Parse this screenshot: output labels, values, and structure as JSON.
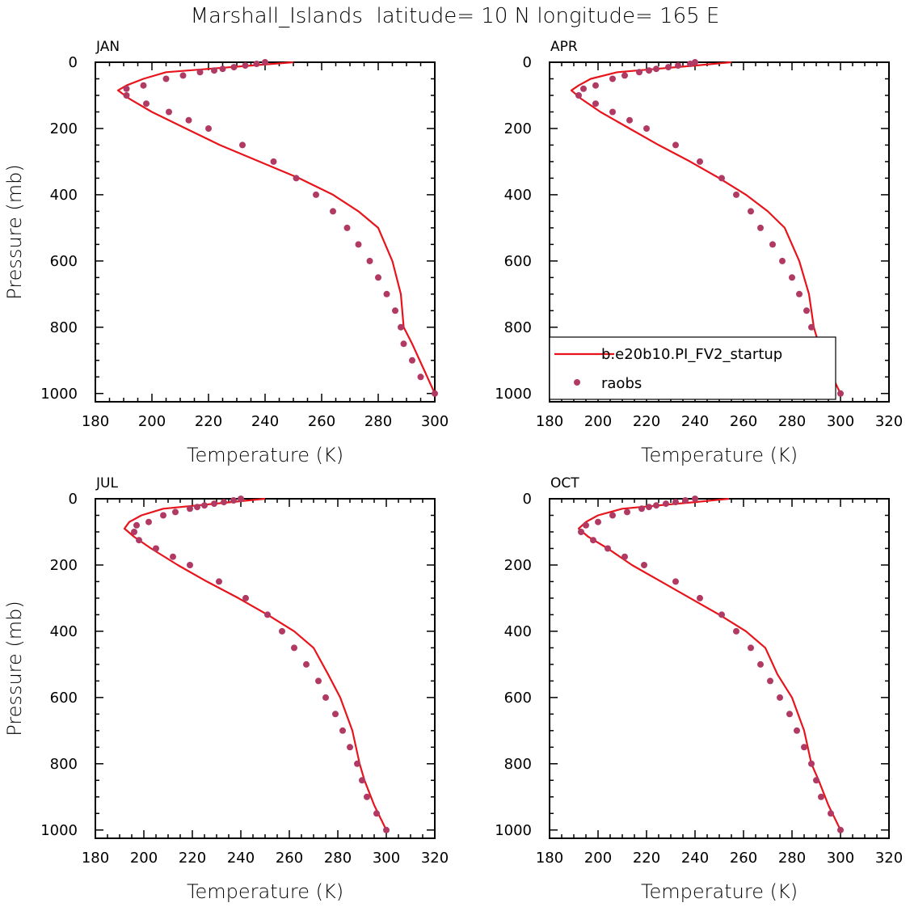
{
  "title": "Marshall_Islands  latitude= 10 N longitude= 165 E",
  "colors": {
    "model": "#e8141c",
    "obs": "#b13a64",
    "axis": "#000000",
    "background": "#ffffff"
  },
  "legend": {
    "model": "b.e20b10.PI_FV2_startup",
    "obs": "raobs",
    "panel": "APR"
  },
  "chart_data": [
    {
      "type": "line",
      "panel": "JAN",
      "xlabel": "Temperature (K)",
      "ylabel": "Pressure (mb)",
      "xlim": [
        180,
        300
      ],
      "ylim": [
        1025,
        0
      ],
      "y_inverted": true,
      "xticks": [
        180,
        200,
        220,
        240,
        260,
        280,
        300
      ],
      "yticks": [
        0,
        200,
        400,
        600,
        800,
        1000
      ],
      "series": [
        {
          "name": "b.e20b10.PI_FV2_startup",
          "kind": "line",
          "x": [
            250,
            235,
            220,
            205,
            197,
            191,
            188,
            192,
            200,
            212,
            224,
            238,
            252,
            264,
            273,
            280,
            285,
            288,
            289,
            292,
            296,
            300
          ],
          "y": [
            0,
            10,
            20,
            30,
            50,
            70,
            85,
            110,
            150,
            200,
            250,
            300,
            350,
            400,
            450,
            500,
            600,
            700,
            800,
            850,
            925,
            1000
          ]
        },
        {
          "name": "raobs",
          "kind": "points",
          "x": [
            240,
            237,
            233,
            229,
            225,
            222,
            217,
            211,
            205,
            197,
            191,
            191,
            198,
            206,
            213,
            220,
            232,
            243,
            251,
            258,
            264,
            269,
            273,
            277,
            280,
            283,
            286,
            288,
            289,
            292,
            295,
            300
          ],
          "y": [
            0,
            5,
            10,
            15,
            20,
            25,
            30,
            40,
            50,
            70,
            80,
            100,
            125,
            150,
            175,
            200,
            250,
            300,
            350,
            400,
            450,
            500,
            550,
            600,
            650,
            700,
            750,
            800,
            850,
            900,
            950,
            1000
          ]
        }
      ]
    },
    {
      "type": "line",
      "panel": "APR",
      "xlabel": "Temperature (K)",
      "ylabel": "",
      "xlim": [
        180,
        320
      ],
      "ylim": [
        1025,
        0
      ],
      "y_inverted": true,
      "xticks": [
        180,
        200,
        220,
        240,
        260,
        280,
        300,
        320
      ],
      "yticks": [
        0,
        200,
        400,
        600,
        800,
        1000
      ],
      "series": [
        {
          "name": "b.e20b10.PI_FV2_startup",
          "kind": "line",
          "x": [
            255,
            240,
            224,
            208,
            197,
            192,
            189,
            193,
            201,
            213,
            225,
            238,
            250,
            261,
            270,
            277,
            283,
            287,
            289,
            291,
            295,
            300
          ],
          "y": [
            0,
            10,
            20,
            30,
            50,
            70,
            85,
            110,
            150,
            200,
            250,
            300,
            350,
            400,
            450,
            500,
            600,
            700,
            800,
            850,
            925,
            1000
          ]
        },
        {
          "name": "raobs",
          "kind": "points",
          "x": [
            240,
            238,
            233,
            229,
            224,
            221,
            217,
            211,
            206,
            199,
            194,
            192,
            199,
            206,
            213,
            220,
            232,
            242,
            251,
            257,
            263,
            267,
            272,
            276,
            280,
            283,
            286,
            288,
            290,
            292,
            296,
            300
          ],
          "y": [
            0,
            5,
            10,
            15,
            20,
            25,
            30,
            40,
            50,
            70,
            80,
            100,
            125,
            150,
            175,
            200,
            250,
            300,
            350,
            400,
            450,
            500,
            550,
            600,
            650,
            700,
            750,
            800,
            850,
            900,
            950,
            1000
          ]
        }
      ]
    },
    {
      "type": "line",
      "panel": "JUL",
      "xlabel": "Temperature (K)",
      "ylabel": "Pressure (mb)",
      "xlim": [
        180,
        320
      ],
      "ylim": [
        1025,
        0
      ],
      "y_inverted": true,
      "xticks": [
        180,
        200,
        220,
        240,
        260,
        280,
        300,
        320
      ],
      "yticks": [
        0,
        200,
        400,
        600,
        800,
        1000
      ],
      "series": [
        {
          "name": "b.e20b10.PI_FV2_startup",
          "kind": "line",
          "x": [
            250,
            236,
            222,
            208,
            199,
            194,
            192,
            196,
            203,
            214,
            226,
            239,
            251,
            262,
            270,
            276,
            281,
            286,
            289,
            291,
            295,
            300
          ],
          "y": [
            0,
            10,
            20,
            30,
            50,
            70,
            90,
            115,
            150,
            200,
            250,
            300,
            350,
            400,
            450,
            530,
            600,
            700,
            800,
            850,
            925,
            1000
          ]
        },
        {
          "name": "raobs",
          "kind": "points",
          "x": [
            240,
            237,
            233,
            229,
            225,
            222,
            219,
            213,
            208,
            202,
            197,
            196,
            198,
            205,
            212,
            219,
            231,
            242,
            251,
            257,
            262,
            267,
            272,
            275,
            279,
            282,
            285,
            288,
            290,
            292,
            296,
            300
          ],
          "y": [
            0,
            5,
            10,
            15,
            20,
            25,
            30,
            40,
            50,
            70,
            80,
            100,
            125,
            150,
            175,
            200,
            250,
            300,
            350,
            400,
            450,
            500,
            550,
            600,
            650,
            700,
            750,
            800,
            850,
            900,
            950,
            1000
          ]
        }
      ]
    },
    {
      "type": "line",
      "panel": "OCT",
      "xlabel": "Temperature (K)",
      "ylabel": "",
      "xlim": [
        180,
        320
      ],
      "ylim": [
        1025,
        0
      ],
      "y_inverted": true,
      "xticks": [
        180,
        200,
        220,
        240,
        260,
        280,
        300,
        320
      ],
      "yticks": [
        0,
        200,
        400,
        600,
        800,
        1000
      ],
      "series": [
        {
          "name": "b.e20b10.PI_FV2_startup",
          "kind": "line",
          "x": [
            254,
            240,
            225,
            210,
            200,
            195,
            192,
            196,
            204,
            214,
            226,
            238,
            250,
            261,
            269,
            274,
            280,
            285,
            288,
            291,
            295,
            300
          ],
          "y": [
            0,
            10,
            20,
            30,
            50,
            70,
            90,
            115,
            150,
            200,
            250,
            300,
            350,
            400,
            450,
            530,
            600,
            700,
            800,
            850,
            925,
            1000
          ]
        },
        {
          "name": "raobs",
          "kind": "points",
          "x": [
            240,
            236,
            232,
            228,
            224,
            221,
            218,
            212,
            206,
            200,
            195,
            193,
            198,
            204,
            211,
            219,
            232,
            242,
            251,
            257,
            263,
            267,
            271,
            275,
            279,
            282,
            285,
            288,
            290,
            292,
            296,
            300
          ],
          "y": [
            0,
            5,
            10,
            15,
            20,
            25,
            30,
            40,
            50,
            70,
            80,
            100,
            125,
            150,
            175,
            200,
            250,
            300,
            350,
            400,
            450,
            500,
            550,
            600,
            650,
            700,
            750,
            800,
            850,
            900,
            950,
            1000
          ]
        }
      ]
    }
  ]
}
